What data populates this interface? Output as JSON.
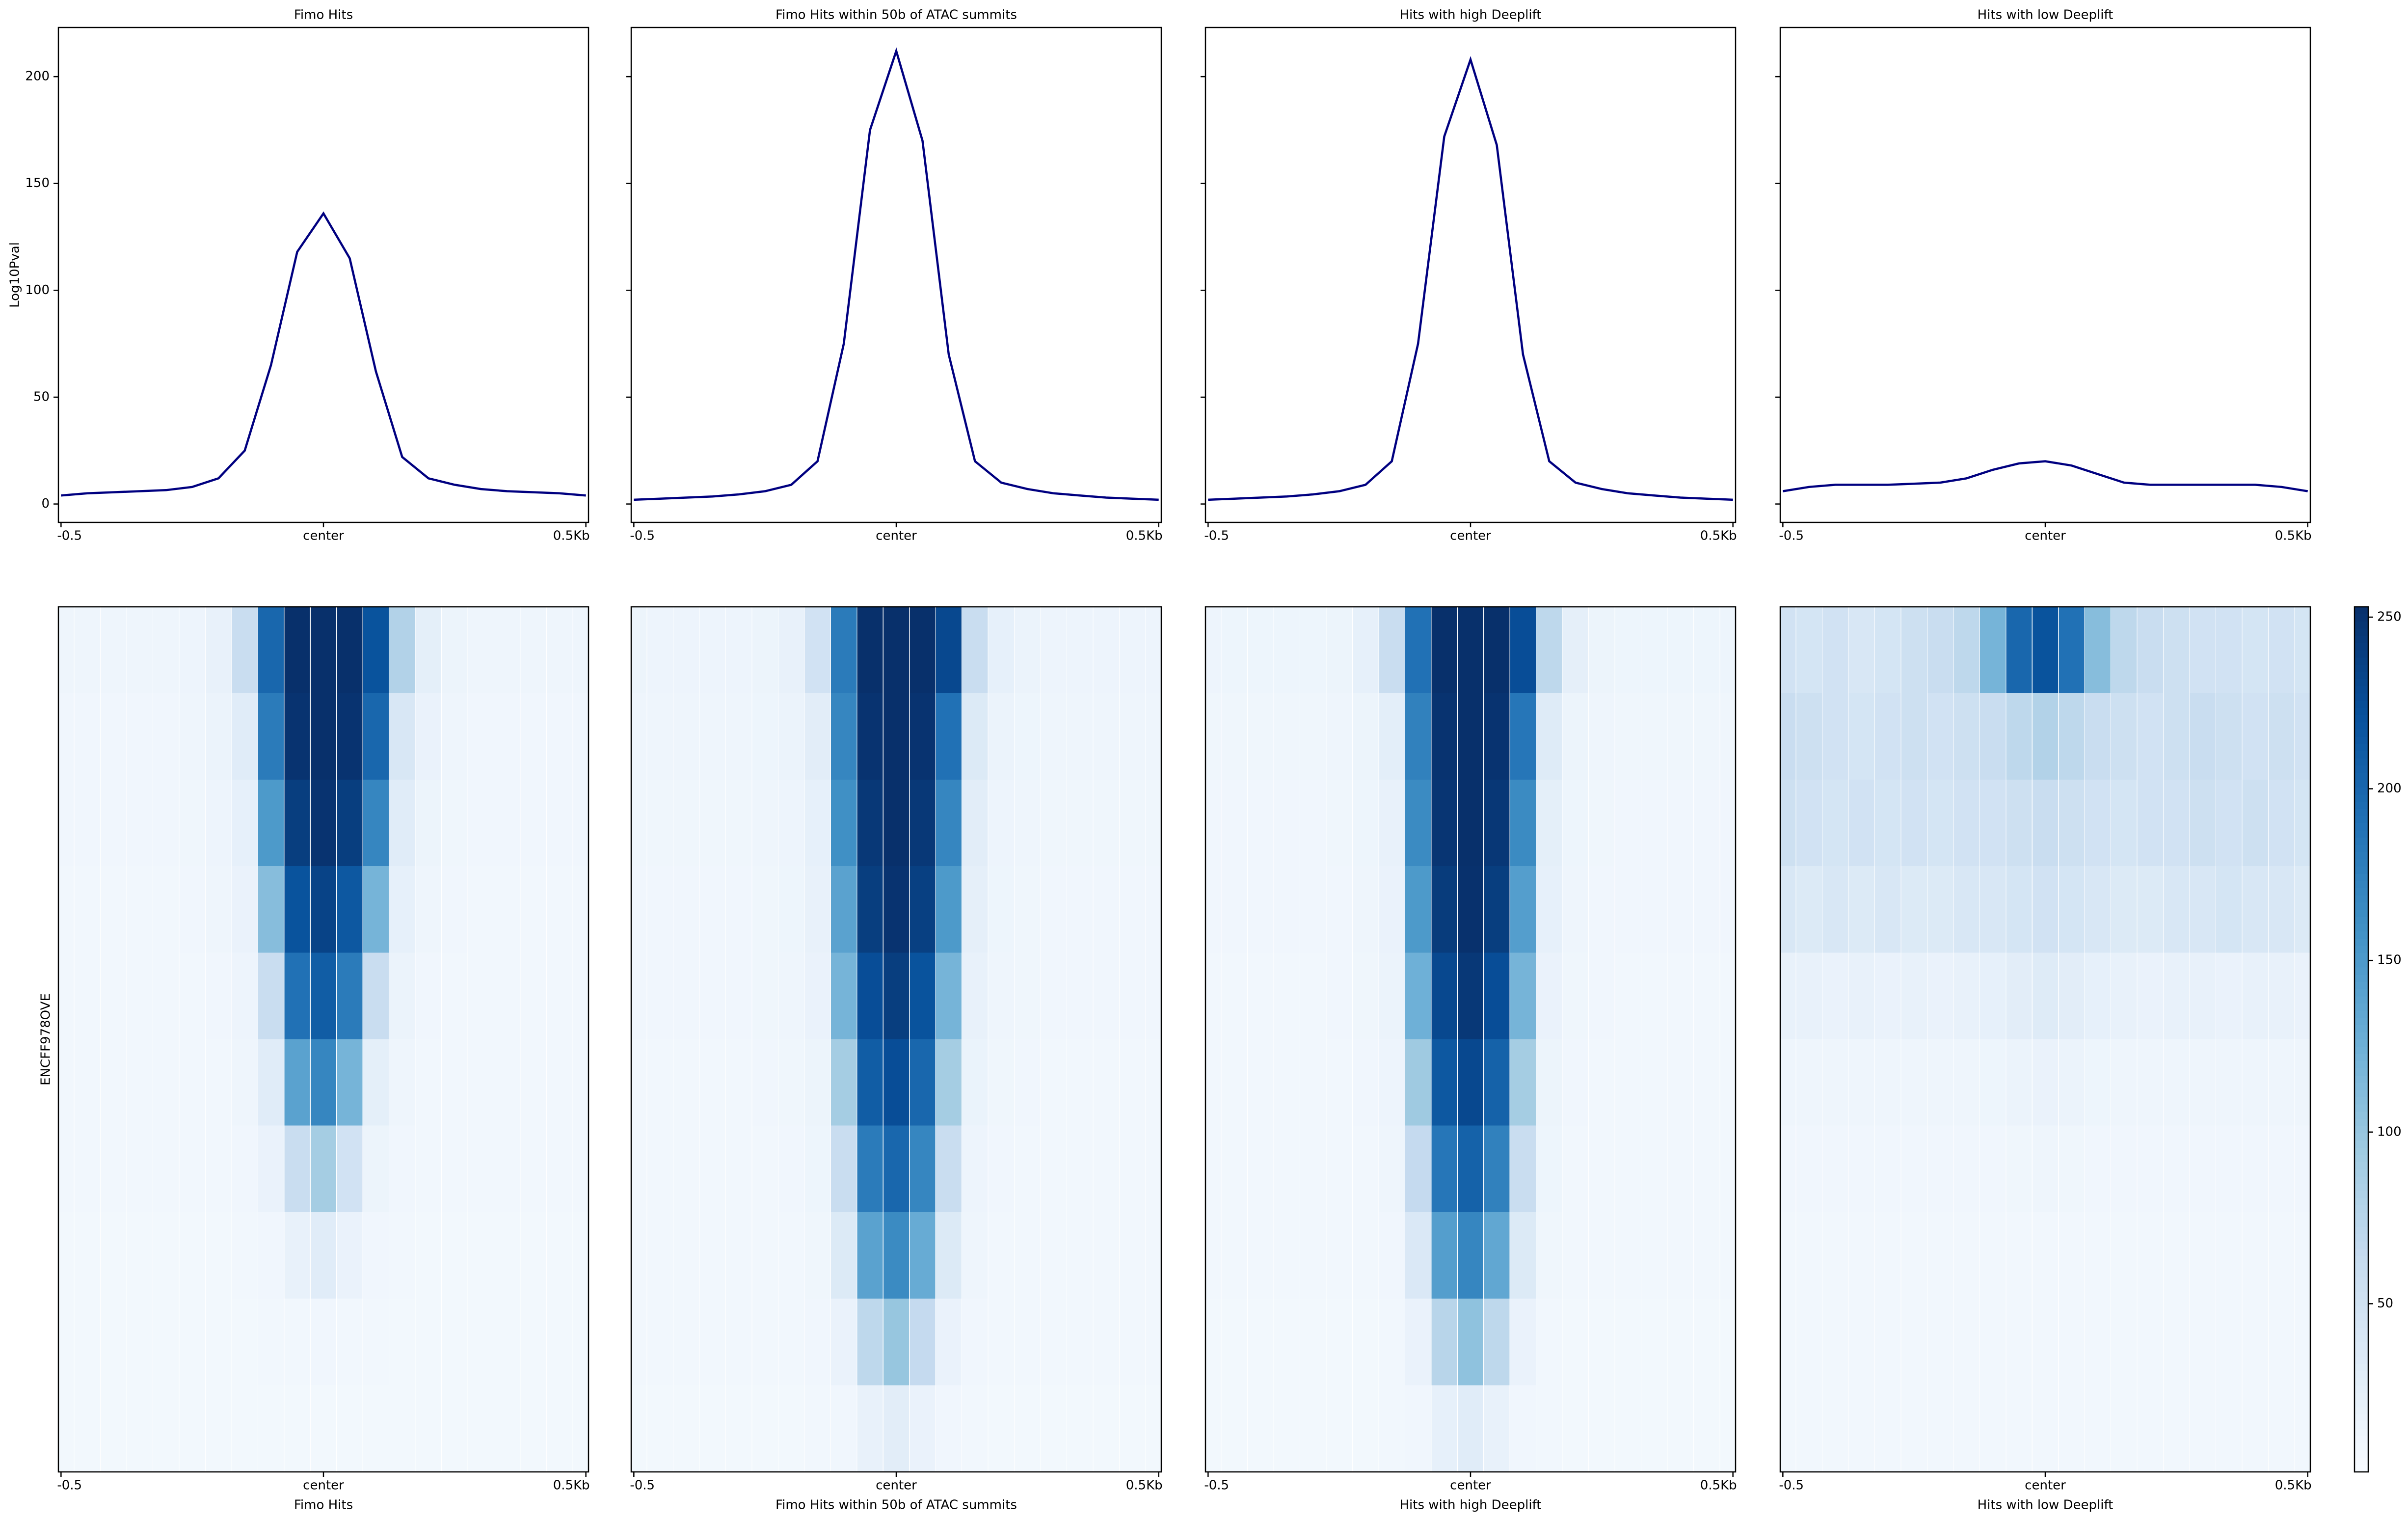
{
  "chart_data": [
    {
      "type": "line",
      "title": "Fimo Hits",
      "ylabel": "Log10Pval",
      "x": [
        -0.5,
        -0.45,
        -0.4,
        -0.35,
        -0.3,
        -0.25,
        -0.2,
        -0.15,
        -0.1,
        -0.05,
        0,
        0.05,
        0.1,
        0.15,
        0.2,
        0.25,
        0.3,
        0.35,
        0.4,
        0.45,
        0.5
      ],
      "series": [
        {
          "color": "#000080",
          "values": [
            4,
            5,
            5.5,
            6,
            6.5,
            8,
            12,
            25,
            65,
            118,
            136,
            115,
            62,
            22,
            12,
            9,
            7,
            6,
            5.5,
            5,
            4
          ]
        }
      ],
      "xlim": [
        -0.505,
        0.505
      ],
      "xticks": [
        -0.5,
        {
          "value": 0,
          "label": "center"
        },
        {
          "value": 0.5,
          "label": "0.5Kb"
        }
      ],
      "ylim": [
        -8.6,
        223
      ],
      "yticks": [
        0,
        50,
        100,
        150,
        200
      ]
    },
    {
      "type": "line",
      "title": "Fimo Hits within 50b of ATAC summits",
      "x": [
        -0.5,
        -0.45,
        -0.4,
        -0.35,
        -0.3,
        -0.25,
        -0.2,
        -0.15,
        -0.1,
        -0.05,
        0,
        0.05,
        0.1,
        0.15,
        0.2,
        0.25,
        0.3,
        0.35,
        0.4,
        0.45,
        0.5
      ],
      "series": [
        {
          "color": "#000080",
          "values": [
            2,
            2.5,
            3,
            3.5,
            4.5,
            6,
            9,
            20,
            75,
            175,
            212,
            170,
            70,
            20,
            10,
            7,
            5,
            4,
            3,
            2.5,
            2
          ]
        }
      ],
      "xlim": [
        -0.505,
        0.505
      ],
      "xticks": [
        -0.5,
        {
          "value": 0,
          "label": "center"
        },
        {
          "value": 0.5,
          "label": "0.5Kb"
        }
      ],
      "ylim": [
        -8.6,
        223
      ]
    },
    {
      "type": "line",
      "title": "Hits with high Deeplift",
      "x": [
        -0.5,
        -0.45,
        -0.4,
        -0.35,
        -0.3,
        -0.25,
        -0.2,
        -0.15,
        -0.1,
        -0.05,
        0,
        0.05,
        0.1,
        0.15,
        0.2,
        0.25,
        0.3,
        0.35,
        0.4,
        0.45,
        0.5
      ],
      "series": [
        {
          "color": "#000080",
          "values": [
            2,
            2.5,
            3,
            3.5,
            4.5,
            6,
            9,
            20,
            75,
            172,
            208,
            168,
            70,
            20,
            10,
            7,
            5,
            4,
            3,
            2.5,
            2
          ]
        }
      ],
      "xlim": [
        -0.505,
        0.505
      ],
      "xticks": [
        -0.5,
        {
          "value": 0,
          "label": "center"
        },
        {
          "value": 0.5,
          "label": "0.5Kb"
        }
      ],
      "ylim": [
        -8.6,
        223
      ]
    },
    {
      "type": "line",
      "title": "Hits with low Deeplift",
      "x": [
        -0.5,
        -0.45,
        -0.4,
        -0.35,
        -0.3,
        -0.25,
        -0.2,
        -0.15,
        -0.1,
        -0.05,
        0,
        0.05,
        0.1,
        0.15,
        0.2,
        0.25,
        0.3,
        0.35,
        0.4,
        0.45,
        0.5
      ],
      "series": [
        {
          "color": "#000080",
          "values": [
            6,
            8,
            9,
            9,
            9,
            9.5,
            10,
            12,
            16,
            19,
            20,
            18,
            14,
            10,
            9,
            9,
            9,
            9,
            9,
            8,
            6
          ]
        }
      ],
      "xlim": [
        -0.505,
        0.505
      ],
      "xticks": [
        -0.5,
        {
          "value": 0,
          "label": "center"
        },
        {
          "value": 0.5,
          "label": "0.5Kb"
        }
      ],
      "ylim": [
        -8.6,
        223
      ]
    },
    {
      "type": "heatmap",
      "xlabel": "Fimo Hits",
      "ylabel": "ENCFF978OVE",
      "colormap": "Blues",
      "zlim": [
        1,
        253
      ],
      "x": [
        -0.5,
        -0.45,
        -0.4,
        -0.35,
        -0.3,
        -0.25,
        -0.2,
        -0.15,
        -0.1,
        -0.05,
        0,
        0.05,
        0.1,
        0.15,
        0.2,
        0.25,
        0.3,
        0.35,
        0.4,
        0.45,
        0.5
      ],
      "z": [
        [
          12,
          12,
          12,
          12,
          12,
          14,
          20,
          60,
          200,
          255,
          255,
          255,
          220,
          80,
          25,
          15,
          12,
          12,
          12,
          12,
          12
        ],
        [
          10,
          10,
          10,
          10,
          10,
          12,
          16,
          30,
          180,
          250,
          255,
          250,
          200,
          40,
          18,
          12,
          10,
          10,
          10,
          10,
          10
        ],
        [
          10,
          10,
          10,
          10,
          10,
          11,
          14,
          22,
          150,
          240,
          250,
          240,
          170,
          30,
          15,
          11,
          10,
          10,
          10,
          10,
          10
        ],
        [
          9,
          9,
          9,
          9,
          9,
          10,
          12,
          18,
          110,
          220,
          235,
          215,
          120,
          22,
          12,
          10,
          9,
          9,
          9,
          9,
          9
        ],
        [
          8,
          8,
          8,
          8,
          8,
          9,
          10,
          14,
          60,
          190,
          210,
          180,
          60,
          16,
          10,
          9,
          8,
          8,
          8,
          8,
          8
        ],
        [
          8,
          8,
          8,
          8,
          8,
          8,
          9,
          12,
          30,
          140,
          170,
          120,
          25,
          12,
          9,
          8,
          8,
          8,
          8,
          8,
          8
        ],
        [
          8,
          8,
          8,
          8,
          8,
          8,
          8,
          10,
          18,
          60,
          90,
          50,
          15,
          10,
          8,
          8,
          8,
          8,
          8,
          8,
          8
        ],
        [
          7,
          7,
          7,
          7,
          7,
          7,
          7,
          8,
          10,
          20,
          30,
          18,
          10,
          8,
          7,
          7,
          7,
          7,
          7,
          7,
          7
        ],
        [
          7,
          7,
          7,
          7,
          7,
          7,
          7,
          7,
          8,
          9,
          10,
          9,
          8,
          7,
          7,
          7,
          7,
          7,
          7,
          7,
          7
        ],
        [
          7,
          7,
          7,
          7,
          7,
          7,
          7,
          7,
          7,
          7,
          7,
          7,
          7,
          7,
          7,
          7,
          7,
          7,
          7,
          7,
          7
        ]
      ],
      "xlim": [
        -0.505,
        0.505
      ],
      "xticks": [
        -0.5,
        {
          "value": 0,
          "label": "center"
        },
        {
          "value": 0.5,
          "label": "0.5Kb"
        }
      ]
    },
    {
      "type": "heatmap",
      "xlabel": "Fimo Hits within 50b of ATAC summits",
      "colormap": "Blues",
      "zlim": [
        1,
        253
      ],
      "x": [
        -0.5,
        -0.45,
        -0.4,
        -0.35,
        -0.3,
        -0.25,
        -0.2,
        -0.15,
        -0.1,
        -0.05,
        0,
        0.05,
        0.1,
        0.15,
        0.2,
        0.25,
        0.3,
        0.35,
        0.4,
        0.45,
        0.5
      ],
      "z": [
        [
          15,
          14,
          14,
          14,
          14,
          15,
          20,
          50,
          180,
          255,
          255,
          255,
          230,
          60,
          22,
          16,
          14,
          14,
          14,
          14,
          14
        ],
        [
          12,
          12,
          12,
          12,
          12,
          13,
          16,
          28,
          170,
          250,
          255,
          250,
          190,
          35,
          16,
          13,
          12,
          12,
          12,
          12,
          12
        ],
        [
          11,
          11,
          11,
          11,
          11,
          12,
          14,
          22,
          160,
          245,
          255,
          245,
          170,
          28,
          14,
          12,
          11,
          11,
          11,
          11,
          11
        ],
        [
          10,
          10,
          10,
          10,
          10,
          11,
          13,
          20,
          140,
          240,
          250,
          238,
          150,
          24,
          13,
          11,
          10,
          10,
          10,
          10,
          10
        ],
        [
          10,
          10,
          10,
          10,
          10,
          11,
          12,
          18,
          120,
          225,
          240,
          220,
          120,
          20,
          12,
          11,
          10,
          10,
          10,
          10,
          10
        ],
        [
          9,
          9,
          9,
          9,
          9,
          10,
          11,
          15,
          90,
          210,
          225,
          200,
          90,
          17,
          11,
          10,
          9,
          9,
          9,
          9,
          9
        ],
        [
          9,
          9,
          9,
          9,
          9,
          9,
          10,
          13,
          60,
          180,
          200,
          170,
          60,
          14,
          10,
          9,
          9,
          9,
          9,
          9,
          9
        ],
        [
          8,
          8,
          8,
          8,
          8,
          8,
          9,
          11,
          35,
          140,
          165,
          130,
          35,
          12,
          9,
          8,
          8,
          8,
          8,
          8,
          8
        ],
        [
          8,
          8,
          8,
          8,
          8,
          8,
          8,
          10,
          18,
          70,
          100,
          65,
          18,
          10,
          8,
          8,
          8,
          8,
          8,
          8,
          8
        ],
        [
          7,
          7,
          7,
          7,
          7,
          7,
          7,
          8,
          10,
          20,
          28,
          18,
          10,
          8,
          7,
          7,
          7,
          7,
          7,
          7,
          7
        ]
      ],
      "xlim": [
        -0.505,
        0.505
      ],
      "xticks": [
        -0.5,
        {
          "value": 0,
          "label": "center"
        },
        {
          "value": 0.5,
          "label": "0.5Kb"
        }
      ]
    },
    {
      "type": "heatmap",
      "xlabel": "Hits with high Deeplift",
      "colormap": "Blues",
      "zlim": [
        1,
        253
      ],
      "x": [
        -0.5,
        -0.45,
        -0.4,
        -0.35,
        -0.3,
        -0.25,
        -0.2,
        -0.15,
        -0.1,
        -0.05,
        0,
        0.05,
        0.1,
        0.15,
        0.2,
        0.25,
        0.3,
        0.35,
        0.4,
        0.45,
        0.5
      ],
      "z": [
        [
          14,
          13,
          13,
          13,
          13,
          15,
          22,
          60,
          190,
          255,
          255,
          255,
          225,
          70,
          24,
          15,
          13,
          13,
          13,
          13,
          13
        ],
        [
          11,
          11,
          11,
          11,
          11,
          12,
          15,
          26,
          175,
          250,
          255,
          250,
          185,
          32,
          15,
          12,
          11,
          11,
          11,
          11,
          11
        ],
        [
          10,
          10,
          10,
          10,
          10,
          11,
          13,
          20,
          165,
          248,
          255,
          246,
          165,
          25,
          13,
          11,
          10,
          10,
          10,
          10,
          10
        ],
        [
          10,
          10,
          10,
          10,
          10,
          10,
          12,
          18,
          150,
          242,
          252,
          240,
          145,
          22,
          12,
          10,
          10,
          10,
          10,
          10,
          10
        ],
        [
          9,
          9,
          9,
          9,
          9,
          10,
          11,
          16,
          125,
          230,
          245,
          225,
          120,
          18,
          11,
          10,
          9,
          9,
          9,
          9,
          9
        ],
        [
          9,
          9,
          9,
          9,
          9,
          9,
          10,
          14,
          95,
          215,
          230,
          205,
          90,
          15,
          10,
          9,
          9,
          9,
          9,
          9,
          9
        ],
        [
          8,
          8,
          8,
          8,
          8,
          8,
          9,
          12,
          65,
          185,
          205,
          175,
          60,
          13,
          9,
          8,
          8,
          8,
          8,
          8,
          8
        ],
        [
          8,
          8,
          8,
          8,
          8,
          8,
          8,
          10,
          38,
          145,
          170,
          135,
          35,
          11,
          8,
          8,
          8,
          8,
          8,
          8,
          8
        ],
        [
          7,
          7,
          7,
          7,
          7,
          7,
          7,
          9,
          18,
          75,
          105,
          70,
          18,
          9,
          7,
          7,
          7,
          7,
          7,
          7,
          7
        ],
        [
          7,
          7,
          7,
          7,
          7,
          7,
          7,
          8,
          10,
          22,
          30,
          20,
          10,
          8,
          7,
          7,
          7,
          7,
          7,
          7,
          7
        ]
      ],
      "xlim": [
        -0.505,
        0.505
      ],
      "xticks": [
        -0.5,
        {
          "value": 0,
          "label": "center"
        },
        {
          "value": 0.5,
          "label": "0.5Kb"
        }
      ]
    },
    {
      "type": "heatmap",
      "xlabel": "Hits with low Deeplift",
      "colormap": "Blues",
      "zlim": [
        1,
        253
      ],
      "zticks": [
        50,
        100,
        150,
        200,
        250
      ],
      "x": [
        -0.5,
        -0.45,
        -0.4,
        -0.35,
        -0.3,
        -0.25,
        -0.2,
        -0.15,
        -0.1,
        -0.05,
        0,
        0.05,
        0.1,
        0.15,
        0.2,
        0.25,
        0.3,
        0.35,
        0.4,
        0.45,
        0.5
      ],
      "z": [
        [
          50,
          45,
          50,
          40,
          45,
          55,
          60,
          70,
          120,
          200,
          220,
          190,
          110,
          70,
          60,
          55,
          50,
          50,
          45,
          50,
          45
        ],
        [
          60,
          55,
          50,
          45,
          50,
          55,
          50,
          55,
          60,
          70,
          80,
          70,
          60,
          55,
          50,
          55,
          60,
          55,
          50,
          55,
          50
        ],
        [
          55,
          50,
          45,
          50,
          45,
          50,
          45,
          50,
          50,
          55,
          60,
          55,
          50,
          45,
          50,
          50,
          55,
          50,
          55,
          50,
          45
        ],
        [
          40,
          35,
          40,
          35,
          40,
          35,
          35,
          40,
          40,
          45,
          50,
          45,
          40,
          35,
          35,
          40,
          40,
          45,
          40,
          40,
          35
        ],
        [
          20,
          20,
          18,
          20,
          18,
          20,
          18,
          20,
          22,
          28,
          32,
          28,
          22,
          20,
          18,
          20,
          20,
          18,
          20,
          20,
          18
        ],
        [
          12,
          12,
          12,
          12,
          12,
          12,
          12,
          12,
          13,
          16,
          18,
          16,
          13,
          12,
          12,
          12,
          12,
          12,
          12,
          12,
          12
        ],
        [
          10,
          10,
          10,
          10,
          10,
          10,
          10,
          10,
          10,
          11,
          12,
          11,
          10,
          10,
          10,
          10,
          10,
          10,
          10,
          10,
          10
        ],
        [
          9,
          9,
          9,
          9,
          9,
          9,
          9,
          9,
          9,
          9,
          9,
          9,
          9,
          9,
          9,
          9,
          9,
          9,
          9,
          9,
          9
        ],
        [
          8,
          8,
          8,
          8,
          8,
          8,
          8,
          8,
          8,
          8,
          8,
          8,
          8,
          8,
          8,
          8,
          8,
          8,
          8,
          8,
          8
        ],
        [
          8,
          8,
          8,
          8,
          8,
          8,
          8,
          8,
          8,
          8,
          8,
          8,
          8,
          8,
          8,
          8,
          8,
          8,
          8,
          8,
          8
        ]
      ],
      "xlim": [
        -0.505,
        0.505
      ],
      "xticks": [
        -0.5,
        {
          "value": 0,
          "label": "center"
        },
        {
          "value": 0.5,
          "label": "0.5Kb"
        }
      ]
    }
  ]
}
